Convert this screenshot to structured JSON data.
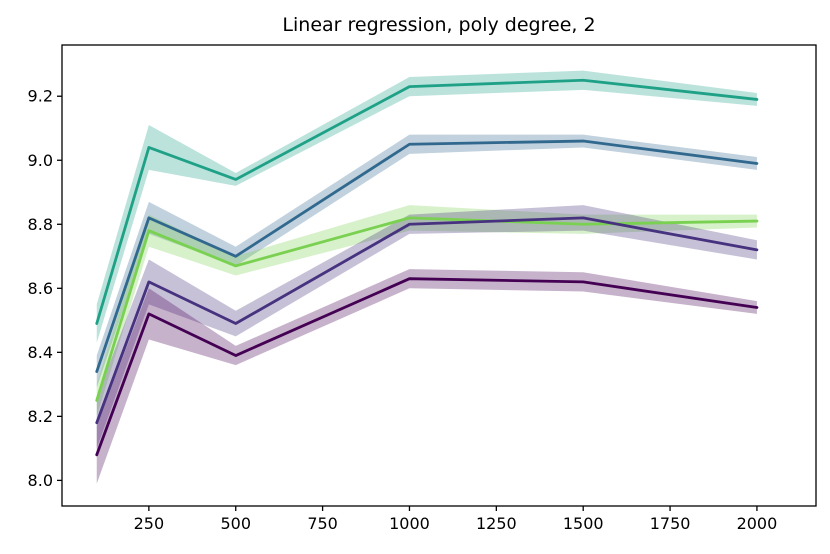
{
  "chart_data": {
    "type": "line",
    "title": "Linear regression, poly degree, 2",
    "x": [
      100,
      250,
      500,
      1000,
      1500,
      2000
    ],
    "xticks": [
      250,
      500,
      750,
      1000,
      1250,
      1500,
      1750,
      2000
    ],
    "yticks": [
      8.0,
      8.2,
      8.4,
      8.6,
      8.8,
      9.0,
      9.2
    ],
    "xlim": [
      0,
      2170
    ],
    "ylim": [
      7.92,
      9.36
    ],
    "grid": false,
    "legend": "none",
    "band_opacity": 0.3,
    "series": [
      {
        "name": "teal",
        "color": "#1fa187",
        "values": [
          8.49,
          9.04,
          8.94,
          9.23,
          9.25,
          9.19
        ],
        "band": [
          0.06,
          0.07,
          0.02,
          0.03,
          0.03,
          0.02
        ]
      },
      {
        "name": "steel-blue",
        "color": "#31688e",
        "values": [
          8.34,
          8.82,
          8.7,
          9.05,
          9.06,
          8.99
        ],
        "band": [
          0.05,
          0.05,
          0.03,
          0.03,
          0.02,
          0.02
        ]
      },
      {
        "name": "light-green",
        "color": "#7ad151",
        "values": [
          8.25,
          8.78,
          8.67,
          8.82,
          8.8,
          8.81
        ],
        "band": [
          0.05,
          0.05,
          0.03,
          0.04,
          0.03,
          0.02
        ]
      },
      {
        "name": "slate-purple",
        "color": "#46327e",
        "values": [
          8.18,
          8.62,
          8.49,
          8.8,
          8.82,
          8.72
        ],
        "band": [
          0.08,
          0.07,
          0.04,
          0.03,
          0.04,
          0.03
        ]
      },
      {
        "name": "dark-purple",
        "color": "#440154",
        "values": [
          8.08,
          8.52,
          8.39,
          8.63,
          8.62,
          8.54
        ],
        "band": [
          0.09,
          0.08,
          0.03,
          0.03,
          0.03,
          0.02
        ]
      }
    ]
  }
}
